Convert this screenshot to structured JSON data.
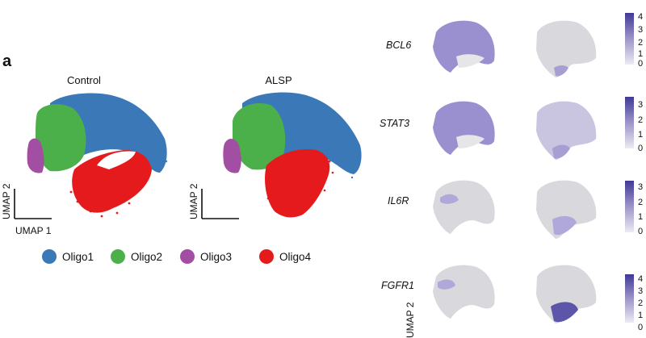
{
  "figure": {
    "panel_label": "a",
    "umap_panels": [
      {
        "title": "Control",
        "x_axis_label": "UMAP 1",
        "y_axis_label": "UMAP 2"
      },
      {
        "title": "ALSP",
        "y_axis_label": "UMAP 2"
      }
    ],
    "legend": [
      {
        "label": "Oligo1",
        "color": "#3a78b8"
      },
      {
        "label": "Oligo2",
        "color": "#4cb04a"
      },
      {
        "label": "Oligo3",
        "color": "#a24ea2"
      },
      {
        "label": "Oligo4",
        "color": "#e41a1c"
      }
    ],
    "genes": [
      {
        "name": "BCL6",
        "colorbar_ticks": [
          "4",
          "3",
          "2",
          "1",
          "0"
        ]
      },
      {
        "name": "STAT3",
        "colorbar_ticks": [
          "3",
          "2",
          "1",
          "0"
        ]
      },
      {
        "name": "IL6R",
        "colorbar_ticks": [
          "3",
          "2",
          "1",
          "0"
        ]
      },
      {
        "name": "FGFR1",
        "colorbar_ticks": [
          "4",
          "3",
          "2",
          "1",
          "0"
        ]
      }
    ],
    "partial_axis_label": "UMAP 2"
  }
}
